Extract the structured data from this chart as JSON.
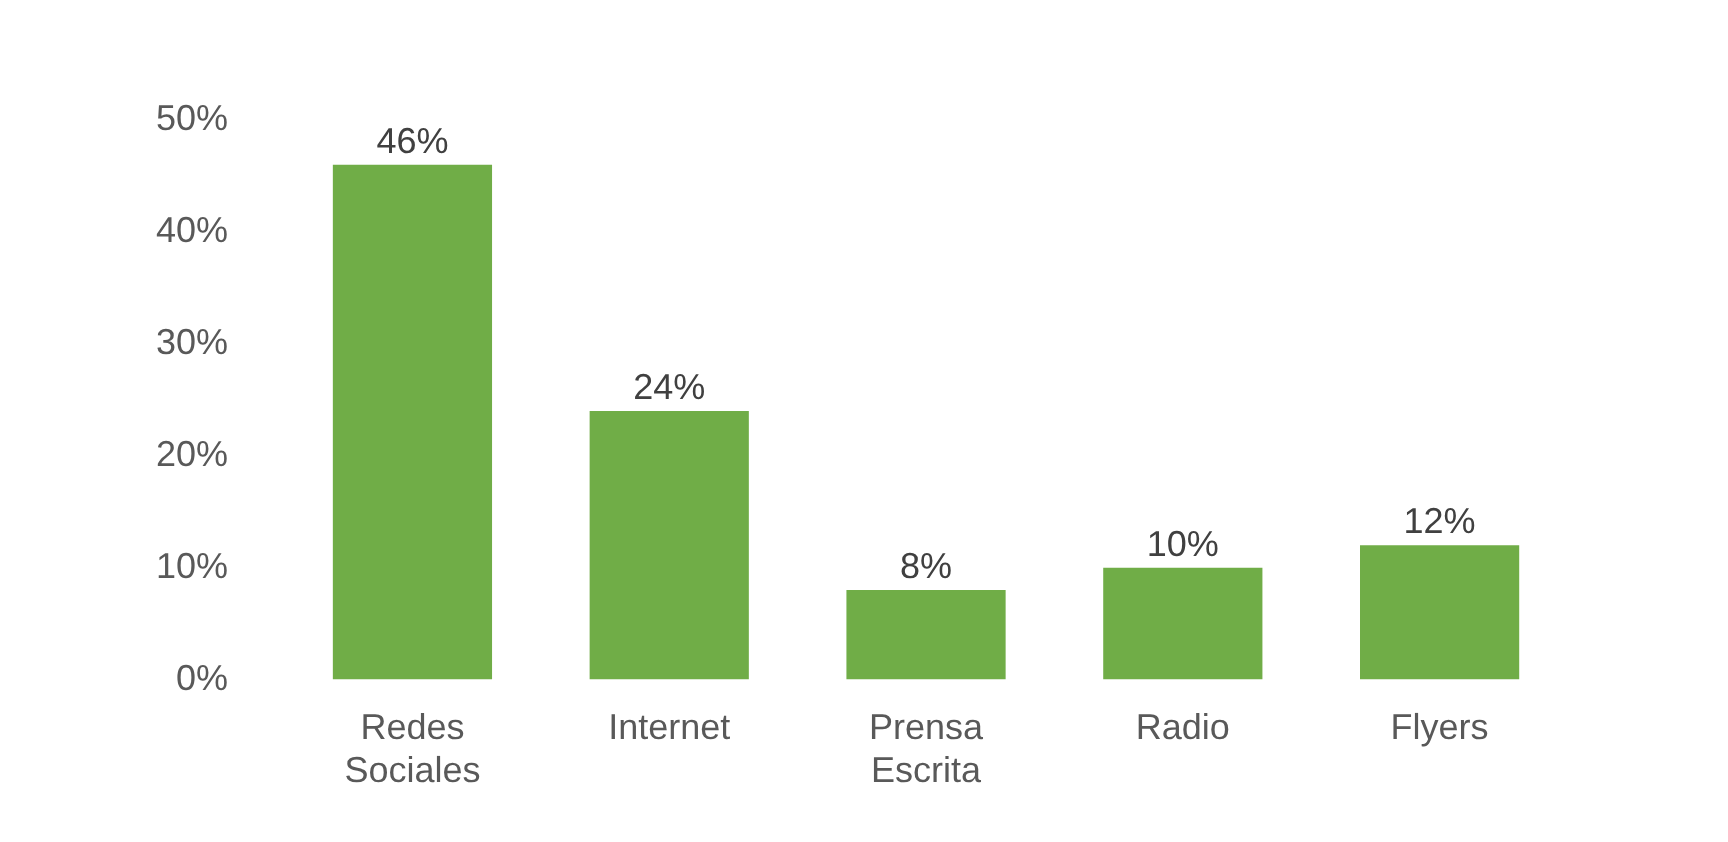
{
  "chart_data": {
    "type": "bar",
    "categories": [
      "Redes Sociales",
      "Internet",
      "Prensa Escrita",
      "Radio",
      "Flyers"
    ],
    "values": [
      46,
      24,
      8,
      10,
      12
    ],
    "color": "#70ad47",
    "value_labels": [
      "46%",
      "24%",
      "8%",
      "10%",
      "12%"
    ],
    "ylim": [
      0,
      50
    ],
    "yticks": [
      {
        "value": 0,
        "label": "0%"
      },
      {
        "value": 10,
        "label": "10%"
      },
      {
        "value": 20,
        "label": "20%"
      },
      {
        "value": 30,
        "label": "30%"
      },
      {
        "value": 40,
        "label": "40%"
      },
      {
        "value": 50,
        "label": "50%"
      }
    ],
    "grid": false,
    "legend": false
  }
}
